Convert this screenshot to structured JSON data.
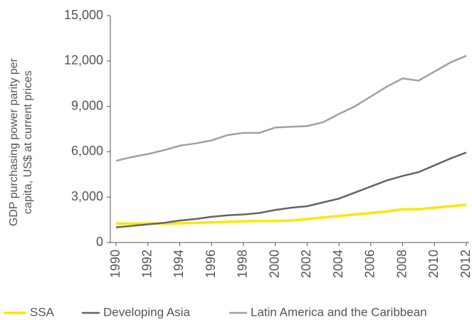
{
  "chart_data": {
    "type": "line",
    "ylabel": [
      "GDP purchasing power parity per",
      "capita, US$ at current prices"
    ],
    "x": [
      1990,
      1991,
      1992,
      1993,
      1994,
      1995,
      1996,
      1997,
      1998,
      1999,
      2000,
      2001,
      2002,
      2003,
      2004,
      2005,
      2006,
      2007,
      2008,
      2009,
      2010,
      2011,
      2012
    ],
    "xlim": [
      1990,
      2012
    ],
    "xticks": [
      1990,
      1992,
      1994,
      1996,
      1998,
      2000,
      2002,
      2004,
      2006,
      2008,
      2010,
      2012
    ],
    "ylim": [
      0,
      15000
    ],
    "yticks": [
      0,
      {
        "value": 3000,
        "label": "3,000"
      },
      {
        "value": 6000,
        "label": "6,000"
      },
      {
        "value": 9000,
        "label": "9,000"
      },
      {
        "value": 12000,
        "label": "12,000"
      },
      {
        "value": 15000,
        "label": "15,000"
      }
    ],
    "grid": false,
    "legend": "bottom",
    "series": [
      {
        "name": "SSA",
        "color": "#ffe600",
        "values": [
          1250,
          1250,
          1250,
          1250,
          1270,
          1300,
          1330,
          1370,
          1400,
          1420,
          1420,
          1450,
          1550,
          1650,
          1750,
          1850,
          1950,
          2050,
          2200,
          2200,
          2300,
          2400,
          2500
        ]
      },
      {
        "name": "Developing Asia",
        "color": "#646464",
        "values": [
          1000,
          1100,
          1200,
          1300,
          1450,
          1550,
          1700,
          1800,
          1850,
          1950,
          2150,
          2300,
          2400,
          2650,
          2900,
          3300,
          3700,
          4100,
          4400,
          4650,
          5100,
          5550,
          5950
        ]
      },
      {
        "name": "Latin America and the Caribbean",
        "color": "#a0a0a0",
        "values": [
          5400,
          5650,
          5850,
          6100,
          6400,
          6550,
          6750,
          7100,
          7250,
          7250,
          7600,
          7650,
          7700,
          7950,
          8500,
          9000,
          9650,
          10300,
          10850,
          10700,
          11300,
          11900,
          12350
        ]
      }
    ]
  }
}
